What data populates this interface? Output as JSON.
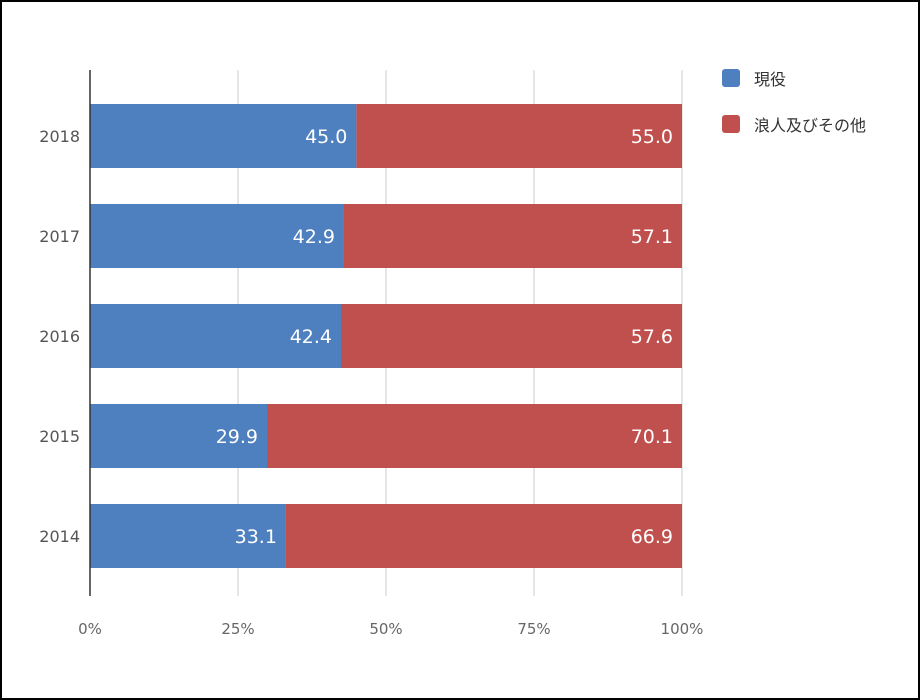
{
  "chart_data": {
    "type": "bar",
    "orientation": "horizontal",
    "stacked": "percent",
    "categories": [
      "2018",
      "2017",
      "2016",
      "2015",
      "2014"
    ],
    "series": [
      {
        "name": "現役",
        "color": "#4e7fbf",
        "values": [
          45.0,
          42.9,
          42.4,
          29.9,
          33.1
        ]
      },
      {
        "name": "浪人及びその他",
        "color": "#c0504d",
        "values": [
          55.0,
          57.1,
          57.6,
          70.1,
          66.9
        ]
      }
    ],
    "data_labels": true,
    "x_ticks": [
      "0%",
      "25%",
      "50%",
      "75%",
      "100%"
    ],
    "xlim": [
      0,
      100
    ],
    "grid": true,
    "legend_position": "right",
    "title": "",
    "xlabel": "",
    "ylabel": ""
  }
}
